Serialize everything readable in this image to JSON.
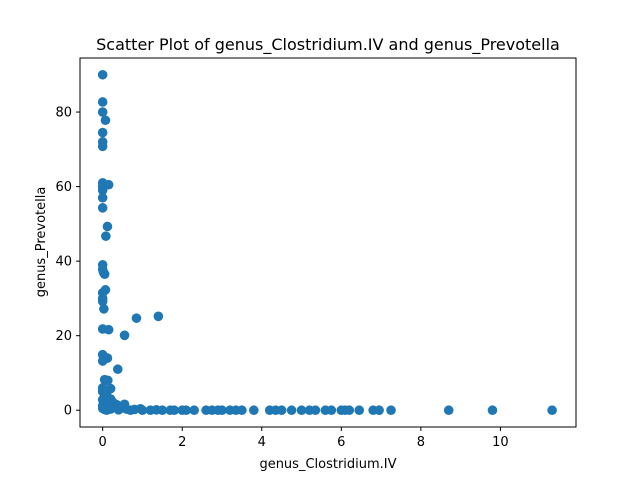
{
  "chart_data": {
    "type": "scatter",
    "title": "Scatter Plot of genus_Clostridium.IV and genus_Prevotella",
    "xlabel": "genus_Clostridium.IV",
    "ylabel": "genus_Prevotella",
    "xlim": [
      -0.57,
      11.9
    ],
    "ylim": [
      -4.5,
      94.5
    ],
    "xticks": [
      0,
      2,
      4,
      6,
      8,
      10
    ],
    "yticks": [
      0,
      20,
      40,
      60,
      80
    ],
    "grid": false,
    "marker_color": "#1f77b4",
    "points": [
      [
        0.0,
        90.0
      ],
      [
        0.0,
        82.7
      ],
      [
        0.0,
        80.0
      ],
      [
        0.07,
        77.8
      ],
      [
        0.0,
        74.5
      ],
      [
        0.0,
        72.0
      ],
      [
        0.0,
        70.8
      ],
      [
        0.0,
        61.0
      ],
      [
        0.0,
        60.0
      ],
      [
        0.15,
        60.5
      ],
      [
        0.0,
        59.0
      ],
      [
        0.0,
        57.0
      ],
      [
        0.0,
        54.3
      ],
      [
        0.12,
        49.3
      ],
      [
        0.08,
        46.7
      ],
      [
        0.0,
        39.0
      ],
      [
        0.0,
        37.8
      ],
      [
        0.02,
        37.0
      ],
      [
        0.05,
        36.5
      ],
      [
        0.07,
        32.3
      ],
      [
        0.0,
        31.5
      ],
      [
        0.0,
        30.0
      ],
      [
        0.0,
        29.2
      ],
      [
        0.03,
        27.2
      ],
      [
        1.4,
        25.2
      ],
      [
        0.85,
        24.7
      ],
      [
        0.0,
        21.8
      ],
      [
        0.15,
        21.6
      ],
      [
        0.55,
        20.1
      ],
      [
        0.0,
        14.9
      ],
      [
        0.12,
        14.0
      ],
      [
        0.0,
        13.2
      ],
      [
        0.38,
        11.0
      ],
      [
        0.05,
        8.2
      ],
      [
        0.13,
        8.0
      ],
      [
        0.0,
        6.0
      ],
      [
        0.2,
        5.8
      ],
      [
        0.0,
        5.0
      ],
      [
        0.1,
        4.5
      ],
      [
        0.05,
        3.8
      ],
      [
        0.2,
        3.0
      ],
      [
        0.0,
        2.8
      ],
      [
        0.25,
        2.2
      ],
      [
        0.1,
        2.0
      ],
      [
        0.35,
        1.5
      ],
      [
        0.55,
        1.6
      ],
      [
        0.0,
        1.2
      ],
      [
        0.15,
        1.0
      ],
      [
        0.3,
        0.8
      ],
      [
        0.45,
        0.5
      ],
      [
        0.6,
        0.3
      ],
      [
        0.0,
        0.5
      ],
      [
        0.05,
        0.2
      ],
      [
        0.1,
        0.0
      ],
      [
        0.2,
        0.3
      ],
      [
        0.4,
        0.1
      ],
      [
        0.7,
        0.0
      ],
      [
        0.8,
        0.2
      ],
      [
        0.95,
        0.4
      ],
      [
        1.0,
        0.0
      ],
      [
        1.2,
        0.0
      ],
      [
        1.35,
        0.1
      ],
      [
        1.5,
        0.0
      ],
      [
        1.7,
        0.0
      ],
      [
        1.8,
        0.0
      ],
      [
        2.0,
        0.0
      ],
      [
        2.1,
        0.0
      ],
      [
        2.3,
        0.0
      ],
      [
        2.6,
        0.0
      ],
      [
        2.75,
        0.0
      ],
      [
        2.9,
        0.0
      ],
      [
        3.0,
        0.0
      ],
      [
        3.2,
        0.0
      ],
      [
        3.35,
        0.0
      ],
      [
        3.5,
        0.0
      ],
      [
        3.8,
        0.0
      ],
      [
        4.2,
        0.0
      ],
      [
        4.35,
        0.0
      ],
      [
        4.5,
        0.0
      ],
      [
        4.75,
        0.0
      ],
      [
        5.0,
        0.0
      ],
      [
        5.2,
        0.0
      ],
      [
        5.35,
        0.0
      ],
      [
        5.6,
        0.0
      ],
      [
        5.75,
        0.0
      ],
      [
        6.0,
        0.0
      ],
      [
        6.1,
        0.0
      ],
      [
        6.2,
        0.0
      ],
      [
        6.45,
        0.0
      ],
      [
        6.8,
        0.0
      ],
      [
        6.95,
        0.0
      ],
      [
        7.25,
        0.0
      ],
      [
        8.7,
        0.0
      ],
      [
        9.8,
        0.0
      ],
      [
        11.3,
        0.0
      ]
    ]
  }
}
